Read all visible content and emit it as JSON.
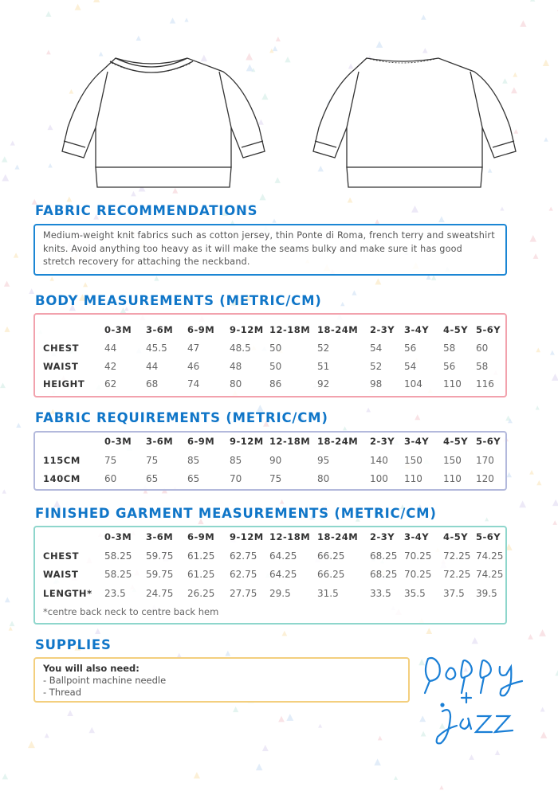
{
  "illustrations": {
    "front": "sweatshirt-front",
    "back": "sweatshirt-back"
  },
  "fabric_recommendations": {
    "title": "FABRIC RECOMMENDATIONS",
    "text": "Medium-weight knit fabrics such as cotton jersey, thin Ponte di Roma, french terry and sweatshirt knits. Avoid anything too heavy as it will make the seams bulky and make sure it has good stretch recovery for attaching the neckband.",
    "border": "#1b86d4"
  },
  "sizes": [
    "0-3M",
    "3-6M",
    "6-9M",
    "9-12M",
    "12-18M",
    "18-24M",
    "2-3Y",
    "3-4Y",
    "4-5Y",
    "5-6Y"
  ],
  "body_measurements": {
    "title": "BODY MEASUREMENTS (METRIC/CM)",
    "border": "#f2a2ad",
    "rows": [
      {
        "label": "CHEST",
        "values": [
          "44",
          "45.5",
          "47",
          "48.5",
          "50",
          "52",
          "54",
          "56",
          "58",
          "60"
        ]
      },
      {
        "label": "WAIST",
        "values": [
          "42",
          "44",
          "46",
          "48",
          "50",
          "51",
          "52",
          "54",
          "56",
          "58"
        ]
      },
      {
        "label": "HEIGHT",
        "values": [
          "62",
          "68",
          "74",
          "80",
          "86",
          "92",
          "98",
          "104",
          "110",
          "116"
        ]
      }
    ]
  },
  "fabric_requirements": {
    "title": "FABRIC REQUIREMENTS (METRIC/CM)",
    "border": "#b3b9dc",
    "rows": [
      {
        "label": "115CM",
        "values": [
          "75",
          "75",
          "85",
          "85",
          "90",
          "95",
          "140",
          "150",
          "150",
          "170"
        ]
      },
      {
        "label": "140CM",
        "values": [
          "60",
          "65",
          "65",
          "70",
          "75",
          "80",
          "100",
          "110",
          "110",
          "120"
        ]
      }
    ]
  },
  "finished_garment": {
    "title": "FINISHED GARMENT MEASUREMENTS (METRIC/CM)",
    "border": "#8ed6cc",
    "rows": [
      {
        "label": "CHEST",
        "values": [
          "58.25",
          "59.75",
          "61.25",
          "62.75",
          "64.25",
          "66.25",
          "68.25",
          "70.25",
          "72.25",
          "74.25"
        ]
      },
      {
        "label": "WAIST",
        "values": [
          "58.25",
          "59.75",
          "61.25",
          "62.75",
          "64.25",
          "66.25",
          "68.25",
          "70.25",
          "72.25",
          "74.25"
        ]
      },
      {
        "label": "LENGTH*",
        "values": [
          "23.5",
          "24.75",
          "26.25",
          "27.75",
          "29.5",
          "31.5",
          "33.5",
          "35.5",
          "37.5",
          "39.5"
        ]
      }
    ],
    "note": "*centre back neck to centre back hem"
  },
  "supplies": {
    "title": "SUPPLIES",
    "heading": "You will also need:",
    "items": [
      "- Ballpoint machine needle",
      "- Thread"
    ],
    "border": "#f3cf7e"
  },
  "logo": {
    "text": "poppy + jazz",
    "color": "#1a7fd6"
  }
}
